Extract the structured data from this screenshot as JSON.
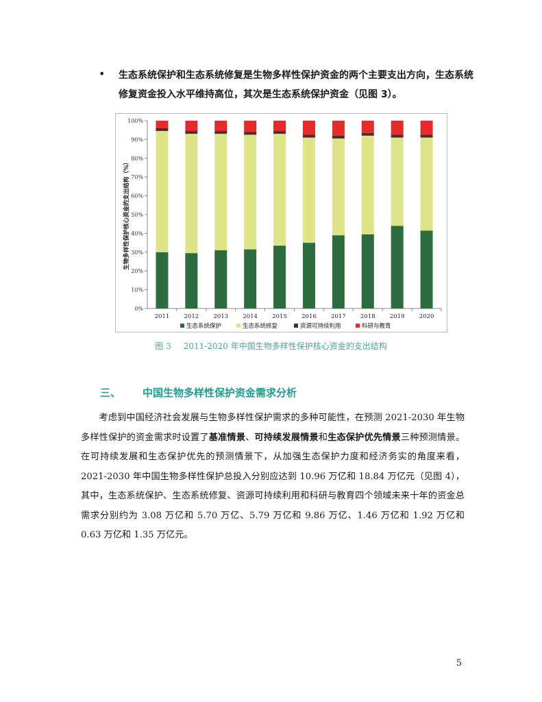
{
  "bullet": {
    "symbol": "•",
    "text": "生态系统保护和生态系统修复是生物多样性保护资金的两个主要支出方向，生态系统修复资金投入水平维持高位，其次是生态系统保护资金（见图 3）。"
  },
  "chart_data": {
    "type": "bar",
    "stacked": true,
    "categories": [
      "2011",
      "2012",
      "2013",
      "2014",
      "2015",
      "2016",
      "2017",
      "2018",
      "2019",
      "2020"
    ],
    "series": [
      {
        "name": "生态系统保护",
        "color": "#2e6b3e",
        "values": [
          30,
          29.5,
          31,
          31.5,
          33.5,
          35,
          39,
          39.5,
          44,
          41.5
        ]
      },
      {
        "name": "生态系统修复",
        "color": "#dde48a",
        "values": [
          64.5,
          63.5,
          62,
          61,
          59.5,
          56,
          51.5,
          52.5,
          47,
          49.5
        ]
      },
      {
        "name": "资源可持续利用",
        "color": "#4a2f2f",
        "values": [
          1.5,
          1.5,
          1.5,
          1.5,
          1.5,
          1.5,
          1.5,
          1.5,
          1.5,
          1.5
        ]
      },
      {
        "name": "科研与教育",
        "color": "#e52b2b",
        "values": [
          4,
          5.5,
          5.5,
          6,
          5.5,
          7.5,
          8,
          6.5,
          7.5,
          7.5
        ]
      }
    ],
    "ylabel": "生物多样性保护核心资金的支出结构（%）",
    "yticks": [
      "0%",
      "10%",
      "20%",
      "30%",
      "40%",
      "50%",
      "60%",
      "70%",
      "80%",
      "90%",
      "100%"
    ],
    "ylim": [
      0,
      100
    ],
    "legend_position": "bottom",
    "grid": false
  },
  "figure": {
    "number": "图 3",
    "title": "2011-2020 年中国生物多样性保护核心资金的支出结构"
  },
  "section": {
    "number": "三、",
    "title": "中国生物多样性保护资金需求分析"
  },
  "paragraph": {
    "part1": "考虑到中国经济社会发展与生物多样性保护需求的多种可能性，在预测 2021-2030 年生物多样性保护的资金需求时设置了",
    "scenario1": "基准情景",
    "sep1": "、",
    "scenario2": "可持续发展情景",
    "sep2": "和",
    "scenario3": "生态保护优先情景",
    "part2": "三种预测情景。在可持续发展和生态保护优先的预测情景下，从加强生态保护力度和经济务实的角度来看，2021-2030 年中国生物多样性保护总投入分别应达到 10.96 万亿和 18.84 万亿元（见图 4），其中，生态系统保护、生态系统修复、资源可持续利用和科研与教育四个领域未来十年的资金总需求分别约为 3.08 万亿和 5.70 万亿、5.79 万亿和 9.86 万亿、1.46 万亿和 1.92 万亿和 0.63 万亿和 1.35 万亿元。"
  },
  "page_number": "5"
}
